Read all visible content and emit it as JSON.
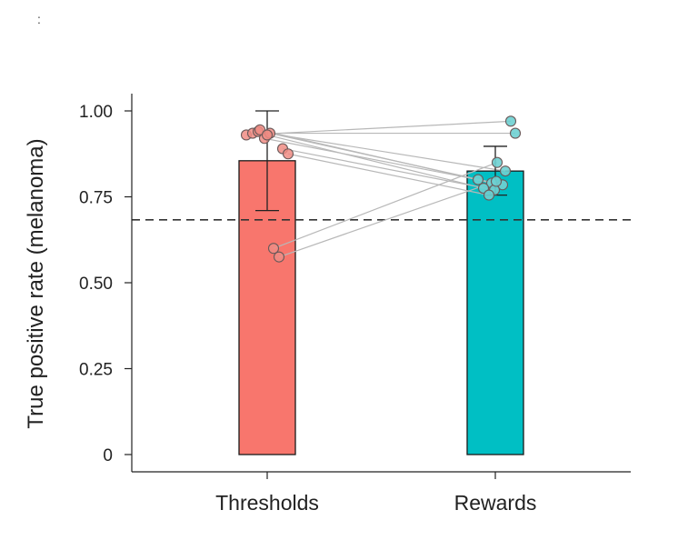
{
  "chart_data": {
    "type": "bar",
    "title": "",
    "xlabel": "",
    "ylabel": "True positive rate (melanoma)",
    "ylim": [
      0,
      1.05
    ],
    "yticks": [
      0,
      0.25,
      0.5,
      0.75,
      1.0
    ],
    "ytick_labels": [
      "0",
      "0.25",
      "0.50",
      "0.75",
      "1.00"
    ],
    "categories": [
      "Thresholds",
      "Rewards"
    ],
    "values": [
      0.855,
      0.825
    ],
    "error_bars": [
      [
        0.71,
        1.0
      ],
      [
        0.755,
        0.897
      ]
    ],
    "reference_line": 0.683,
    "colors": {
      "Thresholds": "#f8766d",
      "Rewards": "#00bfc4"
    },
    "paired_points": [
      {
        "thresholds": 0.93,
        "rewards": 0.97
      },
      {
        "thresholds": 0.935,
        "rewards": 0.935
      },
      {
        "thresholds": 0.94,
        "rewards": 0.825
      },
      {
        "thresholds": 0.92,
        "rewards": 0.8
      },
      {
        "thresholds": 0.945,
        "rewards": 0.79
      },
      {
        "thresholds": 0.935,
        "rewards": 0.785
      },
      {
        "thresholds": 0.93,
        "rewards": 0.775
      },
      {
        "thresholds": 0.89,
        "rewards": 0.77
      },
      {
        "thresholds": 0.875,
        "rewards": 0.755
      },
      {
        "thresholds": 0.6,
        "rewards": 0.85
      },
      {
        "thresholds": 0.575,
        "rewards": 0.795
      }
    ],
    "grid": false,
    "legend": "none"
  },
  "corner_mark": ":"
}
